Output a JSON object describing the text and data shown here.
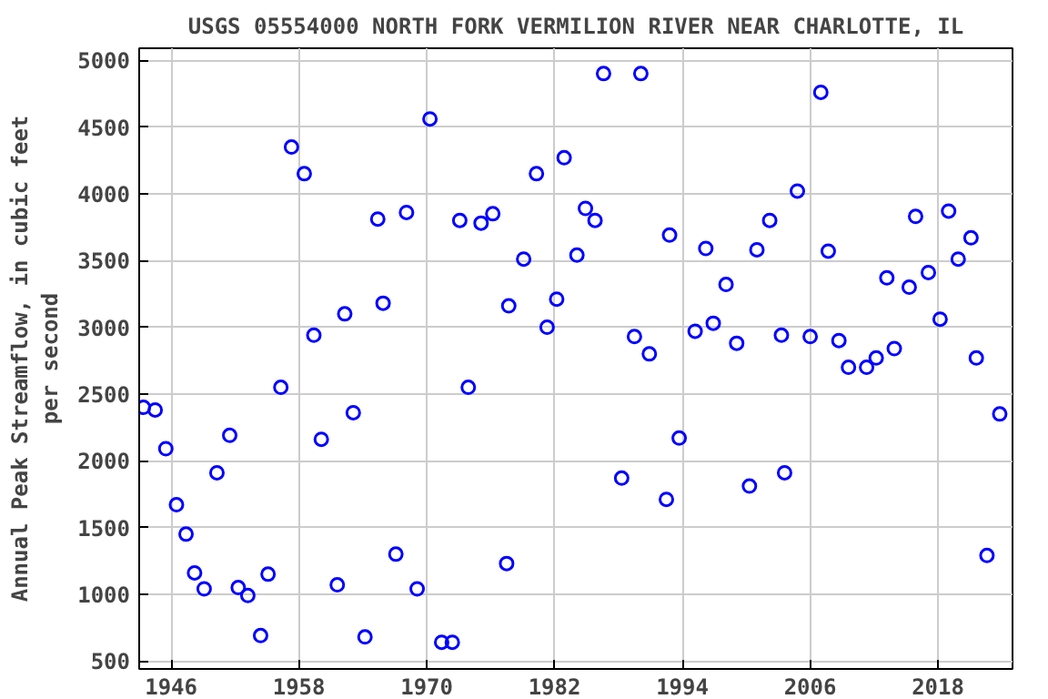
{
  "chart_data": {
    "type": "scatter",
    "title": "USGS 05554000 NORTH FORK VERMILION RIVER NEAR CHARLOTTE, IL",
    "ylabel": "Annual Peak Streamflow, in cubic feet\nper second",
    "x": [
      1943.4,
      1944.5,
      1945.5,
      1946.5,
      1947.4,
      1948.2,
      1949.1,
      1950.3,
      1951.5,
      1952.3,
      1953.2,
      1954.4,
      1955.1,
      1956.3,
      1957.3,
      1958.5,
      1959.4,
      1960.1,
      1961.6,
      1962.3,
      1963.1,
      1964.2,
      1965.4,
      1965.9,
      1967.1,
      1968.1,
      1969.1,
      1970.3,
      1971.4,
      1972.4,
      1973.1,
      1973.9,
      1975.1,
      1976.2,
      1977.5,
      1977.7,
      1979.1,
      1980.3,
      1981.3,
      1982.2,
      1982.9,
      1984.1,
      1984.9,
      1985.8,
      1986.6,
      1988.3,
      1989.5,
      1990.1,
      1990.9,
      1992.5,
      1992.8,
      1993.7,
      1995.2,
      1996.2,
      1996.9,
      1998.1,
      1999.1,
      2000.3,
      2001.0,
      2002.2,
      2003.3,
      2003.6,
      2004.8,
      2006.0,
      2007.0,
      2007.7,
      2008.7,
      2009.6,
      2011.3,
      2012.2,
      2013.2,
      2013.9,
      2015.3,
      2015.9,
      2017.1,
      2018.2,
      2019.0,
      2019.9,
      2021.1,
      2021.6,
      2022.6,
      2023.8
    ],
    "series": [
      {
        "color": "#0000ff",
        "values": [
          2400,
          2380,
          2090,
          1670,
          1450,
          1160,
          1040,
          1910,
          2190,
          1050,
          990,
          690,
          1150,
          2550,
          4350,
          4150,
          2940,
          2160,
          1070,
          3100,
          2360,
          680,
          3810,
          3180,
          1300,
          3860,
          1040,
          4560,
          640,
          640,
          3800,
          2550,
          3780,
          3850,
          1230,
          3160,
          3510,
          4150,
          3000,
          3210,
          4270,
          3540,
          3890,
          3800,
          4900,
          1870,
          2930,
          4900,
          2800,
          1710,
          3690,
          2170,
          2970,
          3590,
          3030,
          3320,
          2880,
          1810,
          3580,
          3800,
          2940,
          1910,
          4020,
          2930,
          4760,
          3570,
          2900,
          2700,
          2700,
          2770,
          3370,
          2840,
          3300,
          3830,
          3410,
          3060,
          3870,
          3510,
          3670,
          2770,
          1290,
          2350
        ]
      }
    ],
    "xlim": [
      1943,
      2025
    ],
    "xticks": [
      1946,
      1958,
      1970,
      1982,
      1994,
      2006,
      2018
    ],
    "ylim": [
      440,
      5090
    ],
    "yticks": [
      500,
      1000,
      1500,
      2000,
      2500,
      3000,
      3500,
      4000,
      4500,
      5000
    ],
    "grid": true,
    "marker": "circle"
  }
}
